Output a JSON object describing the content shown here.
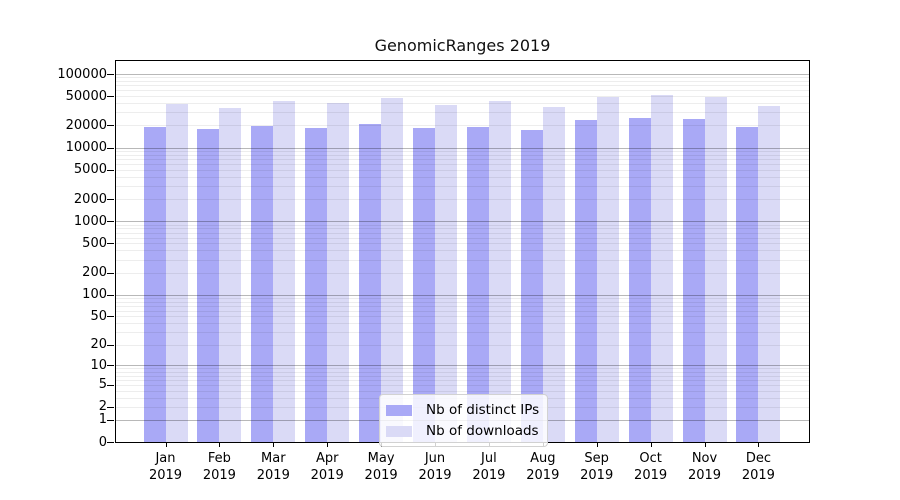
{
  "title": "GenomicRanges 2019",
  "chart_data": {
    "type": "bar",
    "title": "GenomicRanges 2019",
    "categories": [
      "Jan",
      "Feb",
      "Mar",
      "Apr",
      "May",
      "Jun",
      "Jul",
      "Aug",
      "Sep",
      "Oct",
      "Nov",
      "Dec"
    ],
    "year": "2019",
    "series": [
      {
        "name": "Nb of distinct IPs",
        "color": "#a9a9f6",
        "values": [
          19300,
          18000,
          19700,
          18600,
          21200,
          18300,
          19200,
          17400,
          23800,
          25000,
          24200,
          19000
        ]
      },
      {
        "name": "Nb of downloads",
        "color": "#dadaf6",
        "values": [
          39000,
          34000,
          43000,
          41000,
          47500,
          38000,
          42500,
          36000,
          48000,
          51500,
          49000,
          36500
        ]
      }
    ],
    "xlabel": "",
    "ylabel": "",
    "y_scale": "log10(1+y)",
    "ylim": [
      0,
      150000
    ],
    "y_ticks": [
      0,
      1,
      2,
      5,
      10,
      20,
      50,
      100,
      200,
      500,
      1000,
      2000,
      5000,
      10000,
      20000,
      50000,
      100000
    ],
    "grid": true,
    "legend_position": "inside-bottom-center"
  }
}
